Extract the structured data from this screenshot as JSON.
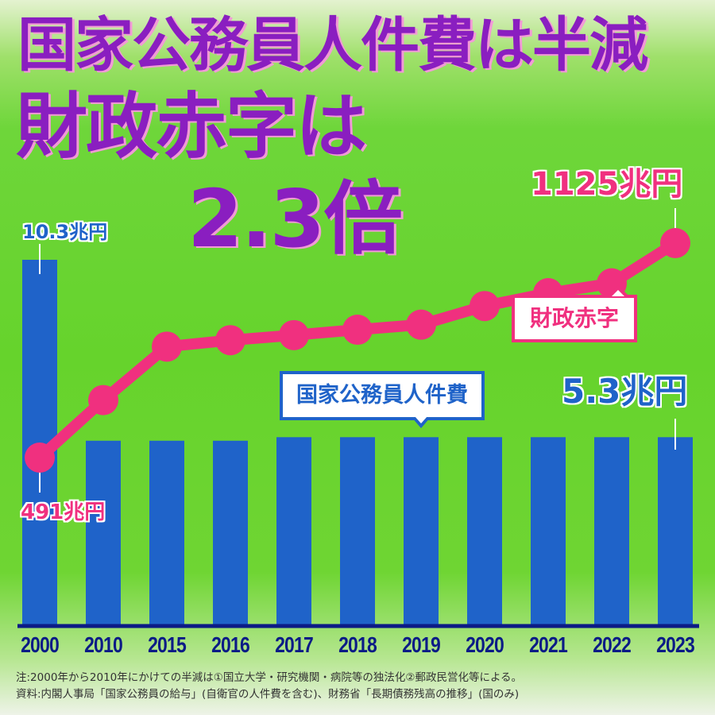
{
  "headline": {
    "line1": "国家公務員人件費は半減",
    "line2": "財政赤字は",
    "line3": "2.3倍"
  },
  "labels": {
    "personnel_2000": "10.3兆円",
    "personnel_2023": "5.3兆円",
    "deficit_2000": "491兆円",
    "deficit_2023": "1125兆円",
    "callout_deficit": "財政赤字",
    "callout_personnel": "国家公務員人件費"
  },
  "notes": {
    "note": "注:2000年から2010年にかけての半減は①国立大学・研究機関・病院等の独法化②郵政民営化等による。",
    "source": "資料:内閣人事局「国家公務員の給与」(自衛官の人件費を含む)、財務省「長期債務残高の推移」(国のみ)"
  },
  "colors": {
    "bar": "#1f63c9",
    "line": "#f0307f",
    "headline": "#8a1ec0",
    "axis": "#0b1b86"
  },
  "chart_data": {
    "type": "bar+line",
    "title": "国家公務員人件費は半減 財政赤字は2.3倍",
    "categories": [
      "2000",
      "2010",
      "2015",
      "2016",
      "2017",
      "2018",
      "2019",
      "2020",
      "2021",
      "2022",
      "2023"
    ],
    "series": [
      {
        "name": "国家公務員人件費",
        "type": "bar",
        "unit": "兆円",
        "values": [
          10.3,
          5.2,
          5.2,
          5.2,
          5.3,
          5.3,
          5.3,
          5.3,
          5.3,
          5.3,
          5.3
        ]
      },
      {
        "name": "財政赤字",
        "type": "line",
        "unit": "兆円",
        "values": [
          491,
          661,
          819,
          838,
          853,
          869,
          884,
          939,
          977,
          1006,
          1125
        ]
      }
    ],
    "annotations": [
      "10.3兆円",
      "5.3兆円",
      "491兆円",
      "1125兆円",
      "2.3倍"
    ],
    "xlabel": "",
    "ylabel": "",
    "grid": false,
    "legend": "callouts"
  },
  "xlabels": [
    "2000",
    "2010",
    "2015",
    "2016",
    "2017",
    "2018",
    "2019",
    "2020",
    "2021",
    "2022",
    "2023"
  ]
}
